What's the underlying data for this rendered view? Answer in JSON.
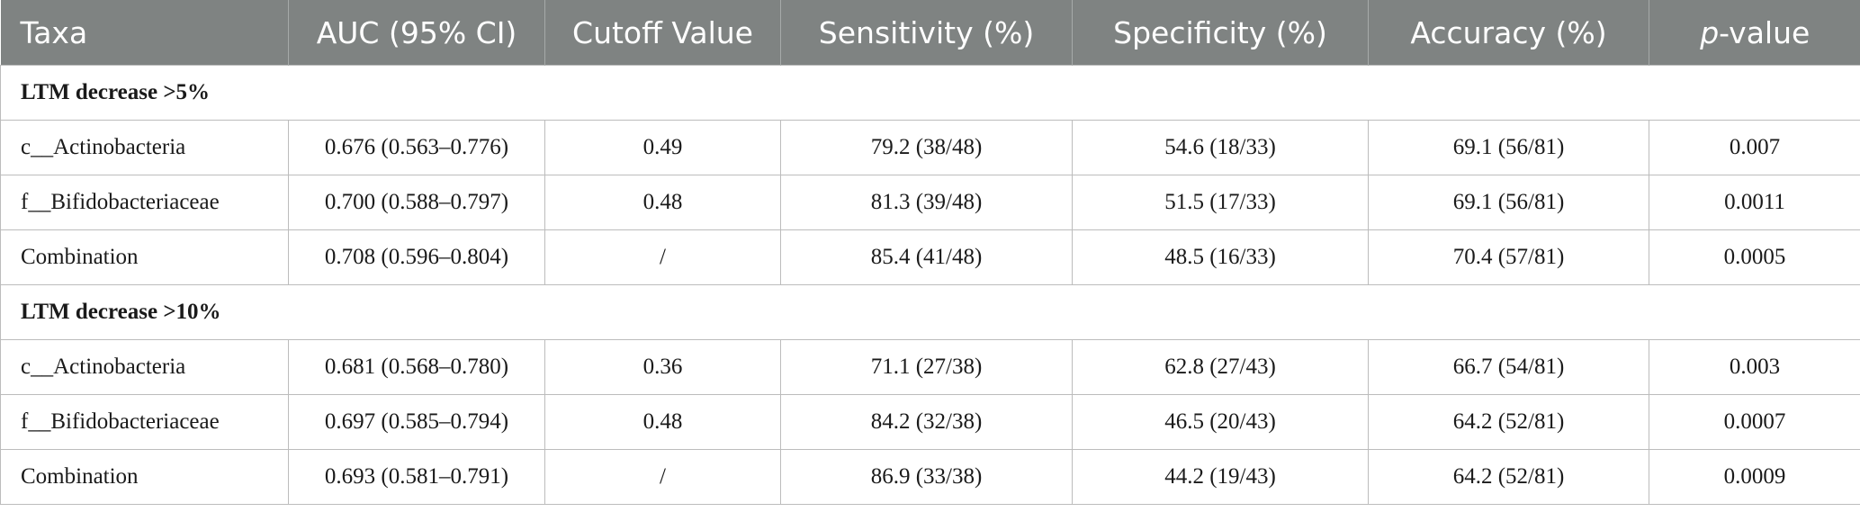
{
  "headers": {
    "taxa": "Taxa",
    "auc": "AUC (95% CI)",
    "cutoff": "Cutoff Value",
    "sensitivity": "Sensitivity (%)",
    "specificity": "Specificity (%)",
    "accuracy": "Accuracy (%)",
    "p_italic": "p",
    "p_suffix": "-value"
  },
  "sections": [
    {
      "title": "LTM decrease >5%",
      "rows": [
        [
          "c__Actinobacteria",
          "0.676 (0.563–0.776)",
          "0.49",
          "79.2 (38/48)",
          "54.6 (18/33)",
          "69.1 (56/81)",
          "0.007"
        ],
        [
          "f__Bifidobacteriaceae",
          "0.700 (0.588–0.797)",
          "0.48",
          "81.3 (39/48)",
          "51.5 (17/33)",
          "69.1 (56/81)",
          "0.0011"
        ],
        [
          "Combination",
          "0.708 (0.596–0.804)",
          "/",
          "85.4 (41/48)",
          "48.5 (16/33)",
          "70.4 (57/81)",
          "0.0005"
        ]
      ]
    },
    {
      "title": "LTM decrease >10%",
      "rows": [
        [
          "c__Actinobacteria",
          "0.681 (0.568–0.780)",
          "0.36",
          "71.1 (27/38)",
          "62.8 (27/43)",
          "66.7 (54/81)",
          "0.003"
        ],
        [
          "f__Bifidobacteriaceae",
          "0.697 (0.585–0.794)",
          "0.48",
          "84.2 (32/38)",
          "46.5 (20/43)",
          "64.2 (52/81)",
          "0.0007"
        ],
        [
          "Combination",
          "0.693 (0.581–0.791)",
          "/",
          "86.9 (33/38)",
          "44.2 (19/43)",
          "64.2 (52/81)",
          "0.0009"
        ]
      ]
    }
  ]
}
